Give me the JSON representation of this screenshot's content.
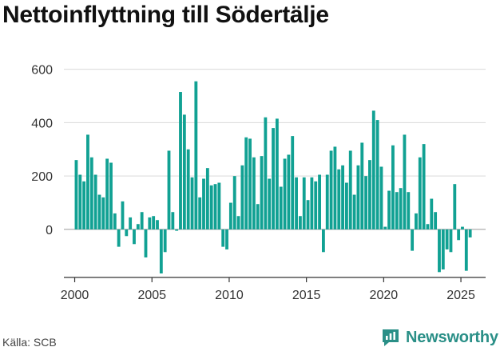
{
  "title": "Nettoinflyttning till Södertälje",
  "source": "Källa: SCB",
  "brand": "Newsworthy",
  "colors": {
    "bar": "#11a193",
    "grid": "#d9d9d9",
    "axis": "#333333",
    "brand": "#2a8f87"
  },
  "chart_data": {
    "type": "bar",
    "title": "Nettoinflyttning till Södertälje",
    "xlabel": "",
    "ylabel": "",
    "x_start": 2000.0,
    "x_step": 0.25,
    "ylim": [
      -180,
      620
    ],
    "xlim": [
      1999.3,
      2026.6
    ],
    "yticks": [
      0,
      200,
      400,
      600
    ],
    "xticks": [
      2000,
      2005,
      2010,
      2015,
      2020,
      2025
    ],
    "grid": true,
    "values": [
      260,
      205,
      180,
      355,
      270,
      205,
      130,
      120,
      265,
      250,
      60,
      -65,
      105,
      -25,
      45,
      -55,
      20,
      65,
      -105,
      45,
      50,
      35,
      -165,
      -85,
      295,
      65,
      -5,
      515,
      430,
      300,
      195,
      555,
      120,
      190,
      230,
      165,
      170,
      175,
      -65,
      -75,
      100,
      200,
      50,
      240,
      345,
      340,
      270,
      95,
      275,
      420,
      190,
      380,
      415,
      160,
      265,
      280,
      350,
      195,
      50,
      195,
      110,
      195,
      180,
      205,
      -85,
      205,
      295,
      310,
      225,
      240,
      175,
      295,
      130,
      240,
      325,
      200,
      260,
      445,
      410,
      235,
      10,
      145,
      315,
      140,
      155,
      355,
      140,
      -80,
      60,
      270,
      320,
      20,
      115,
      65,
      -160,
      -150,
      -75,
      -85,
      170,
      -40,
      10,
      -155,
      -30
    ]
  }
}
